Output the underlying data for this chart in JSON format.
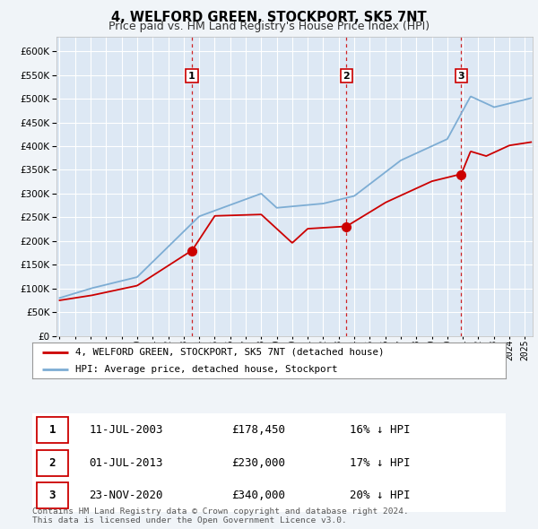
{
  "title": "4, WELFORD GREEN, STOCKPORT, SK5 7NT",
  "subtitle": "Price paid vs. HM Land Registry's House Price Index (HPI)",
  "ytick_values": [
    0,
    50000,
    100000,
    150000,
    200000,
    250000,
    300000,
    350000,
    400000,
    450000,
    500000,
    550000,
    600000
  ],
  "ylim": [
    0,
    630000
  ],
  "xlim_start": 1994.8,
  "xlim_end": 2025.5,
  "x_ticks": [
    1995,
    1996,
    1997,
    1998,
    1999,
    2000,
    2001,
    2002,
    2003,
    2004,
    2005,
    2006,
    2007,
    2008,
    2009,
    2010,
    2011,
    2012,
    2013,
    2014,
    2015,
    2016,
    2017,
    2018,
    2019,
    2020,
    2021,
    2022,
    2023,
    2024,
    2025
  ],
  "background_color": "#f0f4f8",
  "plot_bg_color": "#dde8f4",
  "grid_color": "#ffffff",
  "red_line_color": "#cc0000",
  "blue_line_color": "#7dadd4",
  "sale1_x": 2003.53,
  "sale1_y": 178450,
  "sale2_x": 2013.5,
  "sale2_y": 230000,
  "sale3_x": 2020.9,
  "sale3_y": 340000,
  "vline_color": "#cc0000",
  "legend_red_label": "4, WELFORD GREEN, STOCKPORT, SK5 7NT (detached house)",
  "legend_blue_label": "HPI: Average price, detached house, Stockport",
  "table_data": [
    [
      "1",
      "11-JUL-2003",
      "£178,450",
      "16% ↓ HPI"
    ],
    [
      "2",
      "01-JUL-2013",
      "£230,000",
      "17% ↓ HPI"
    ],
    [
      "3",
      "23-NOV-2020",
      "£340,000",
      "20% ↓ HPI"
    ]
  ],
  "footer": "Contains HM Land Registry data © Crown copyright and database right 2024.\nThis data is licensed under the Open Government Licence v3.0."
}
